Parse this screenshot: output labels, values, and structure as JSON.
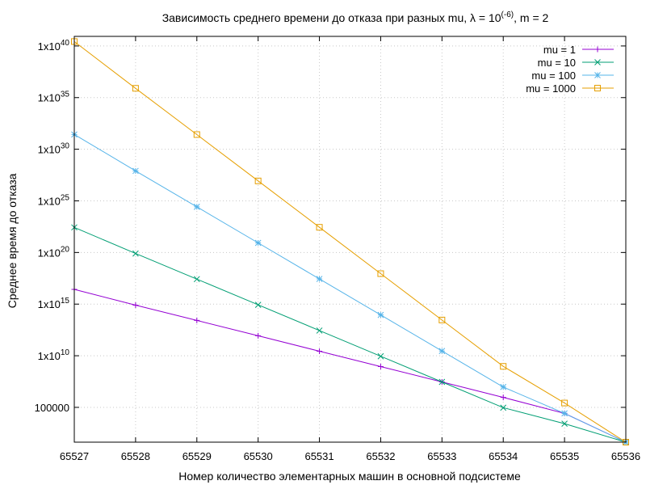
{
  "chart_data": {
    "type": "line",
    "title_main": "Зависимость среднего времени до отказа при разных mu,  λ = 10",
    "title_sup": "(-6)",
    "title_tail": ", m = 2",
    "xlabel": "Номер количество элементарных машин в основной подсистеме",
    "ylabel": "Среднее время до отказа",
    "y_scale": "log",
    "ylim_exp": [
      1.63,
      40.93
    ],
    "xlim": [
      65527,
      65536
    ],
    "grid": true,
    "legend_position": "top-right",
    "x_ticks": [
      65527,
      65528,
      65529,
      65530,
      65531,
      65532,
      65533,
      65534,
      65535,
      65536
    ],
    "x_tick_labels": [
      "65527",
      "65528",
      "65529",
      "65530",
      "65531",
      "65532",
      "65533",
      "65534",
      "65535",
      "65536"
    ],
    "y_ticks": [
      {
        "exp": 5,
        "label": "100000",
        "base": "",
        "sup": ""
      },
      {
        "exp": 10,
        "label": "",
        "base": "1x10",
        "sup": "10"
      },
      {
        "exp": 15,
        "label": "",
        "base": "1x10",
        "sup": "15"
      },
      {
        "exp": 20,
        "label": "",
        "base": "1x10",
        "sup": "20"
      },
      {
        "exp": 25,
        "label": "",
        "base": "1x10",
        "sup": "25"
      },
      {
        "exp": 30,
        "label": "",
        "base": "1x10",
        "sup": "30"
      },
      {
        "exp": 35,
        "label": "",
        "base": "1x10",
        "sup": "35"
      },
      {
        "exp": 40,
        "label": "",
        "base": "1x10",
        "sup": "40"
      }
    ],
    "series": [
      {
        "name": "mu = 1",
        "color": "#9400d3",
        "marker": "plus",
        "x": [
          65527,
          65528,
          65529,
          65530,
          65531,
          65532,
          65533,
          65534,
          65535,
          65536
        ],
        "y_exp": [
          16.43,
          14.9,
          13.42,
          11.93,
          10.44,
          8.95,
          7.46,
          5.97,
          4.42,
          1.63
        ]
      },
      {
        "name": "mu = 10",
        "color": "#009e73",
        "marker": "cross",
        "x": [
          65527,
          65528,
          65529,
          65530,
          65531,
          65532,
          65533,
          65534,
          65535,
          65536
        ],
        "y_exp": [
          22.43,
          19.9,
          17.42,
          14.93,
          12.44,
          9.95,
          7.46,
          4.97,
          3.42,
          1.63
        ]
      },
      {
        "name": "mu = 100",
        "color": "#56b4e9",
        "marker": "star",
        "x": [
          65527,
          65528,
          65529,
          65530,
          65531,
          65532,
          65533,
          65534,
          65535,
          65536
        ],
        "y_exp": [
          31.43,
          27.9,
          24.42,
          20.93,
          17.44,
          13.95,
          10.46,
          6.97,
          4.42,
          1.63
        ]
      },
      {
        "name": "mu = 1000",
        "color": "#e69f00",
        "marker": "square",
        "x": [
          65527,
          65528,
          65529,
          65530,
          65531,
          65532,
          65533,
          65534,
          65535,
          65536
        ],
        "y_exp": [
          40.43,
          35.9,
          31.42,
          26.93,
          22.44,
          17.95,
          13.46,
          8.97,
          5.42,
          1.63
        ]
      }
    ]
  }
}
